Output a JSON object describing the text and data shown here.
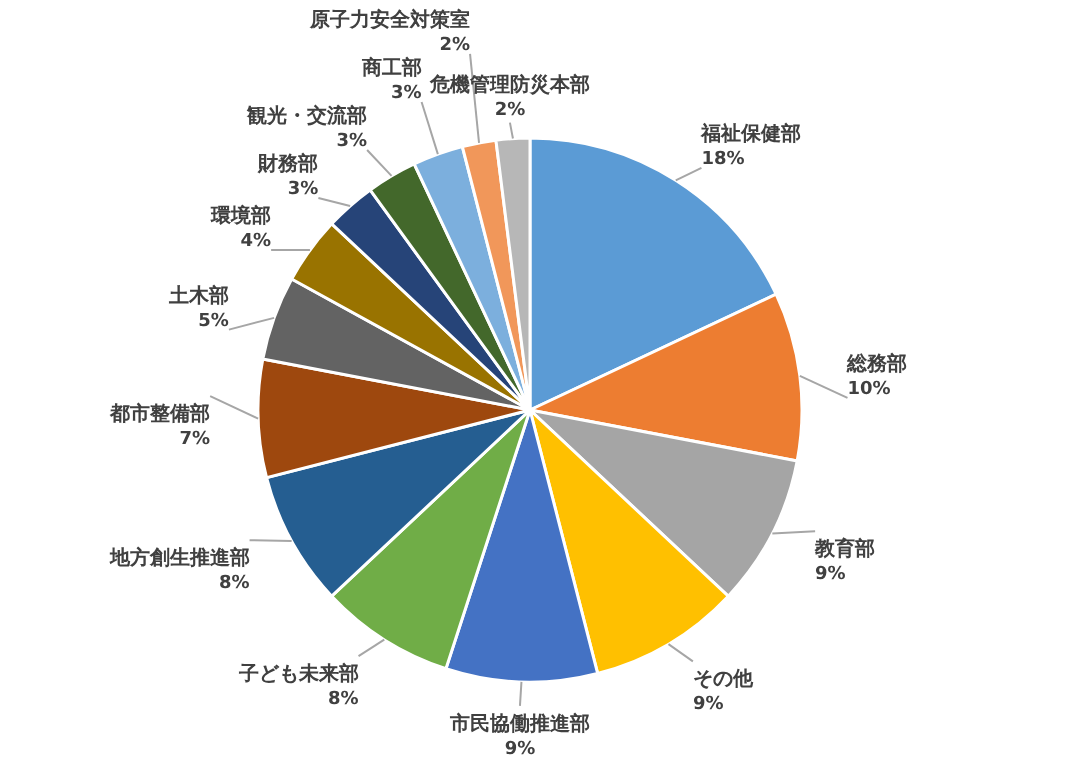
{
  "chart_data": {
    "type": "pie",
    "value_labels": [
      "18%",
      "10%",
      "9%",
      "9%",
      "9%",
      "8%",
      "8%",
      "7%",
      "5%",
      "4%",
      "3%",
      "3%",
      "3%",
      "2%",
      "2%"
    ],
    "categories": [
      "福祉保健部",
      "総務部",
      "教育部",
      "その他",
      "市民協働推進部",
      "子ども未来部",
      "地方創生推進部",
      "都市整備部",
      "土木部",
      "環境部",
      "財務部",
      "観光・交流部",
      "商工部",
      "原子力安全対策室",
      "危機管理防災本部"
    ],
    "values": [
      18,
      10,
      9,
      9,
      9,
      8,
      8,
      7,
      5,
      4,
      3,
      3,
      3,
      2,
      2
    ],
    "colors": [
      "#5b9bd5",
      "#ed7d31",
      "#a5a5a5",
      "#ffc000",
      "#4472c4",
      "#70ad47",
      "#255e91",
      "#9e480e",
      "#636363",
      "#997300",
      "#264478",
      "#43682b",
      "#7cafdd",
      "#f1975a",
      "#b7b7b7"
    ]
  }
}
